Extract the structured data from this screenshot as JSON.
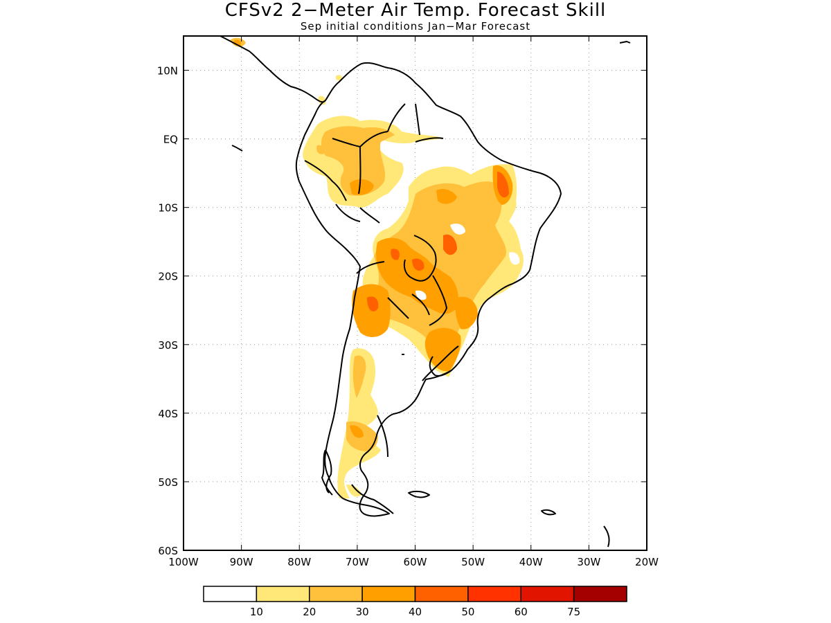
{
  "title": "CFSv2 2−Meter Air Temp. Forecast Skill",
  "subtitle": "Sep initial conditions  Jan−Mar Forecast",
  "map": {
    "lon_range": [
      -100,
      -20
    ],
    "lat_range": [
      -60,
      15
    ],
    "lon_ticks": [
      {
        "v": -100,
        "label": "100W"
      },
      {
        "v": -90,
        "label": "90W"
      },
      {
        "v": -80,
        "label": "80W"
      },
      {
        "v": -70,
        "label": "70W"
      },
      {
        "v": -60,
        "label": "60W"
      },
      {
        "v": -50,
        "label": "50W"
      },
      {
        "v": -40,
        "label": "40W"
      },
      {
        "v": -30,
        "label": "30W"
      },
      {
        "v": -20,
        "label": "20W"
      }
    ],
    "lat_ticks": [
      {
        "v": 10,
        "label": "10N"
      },
      {
        "v": 0,
        "label": "EQ"
      },
      {
        "v": -10,
        "label": "10S"
      },
      {
        "v": -20,
        "label": "20S"
      },
      {
        "v": -30,
        "label": "30S"
      },
      {
        "v": -40,
        "label": "40S"
      },
      {
        "v": -50,
        "label": "50S"
      },
      {
        "v": -60,
        "label": "60S"
      }
    ],
    "grid": "dotted",
    "region": "South America"
  },
  "colorbar": {
    "colors": [
      "#ffffff",
      "#ffe878",
      "#ffc03c",
      "#ffa000",
      "#ff6000",
      "#ff3200",
      "#e11400",
      "#a50000"
    ],
    "labels": [
      "10",
      "20",
      "30",
      "40",
      "50",
      "60",
      "75"
    ]
  }
}
